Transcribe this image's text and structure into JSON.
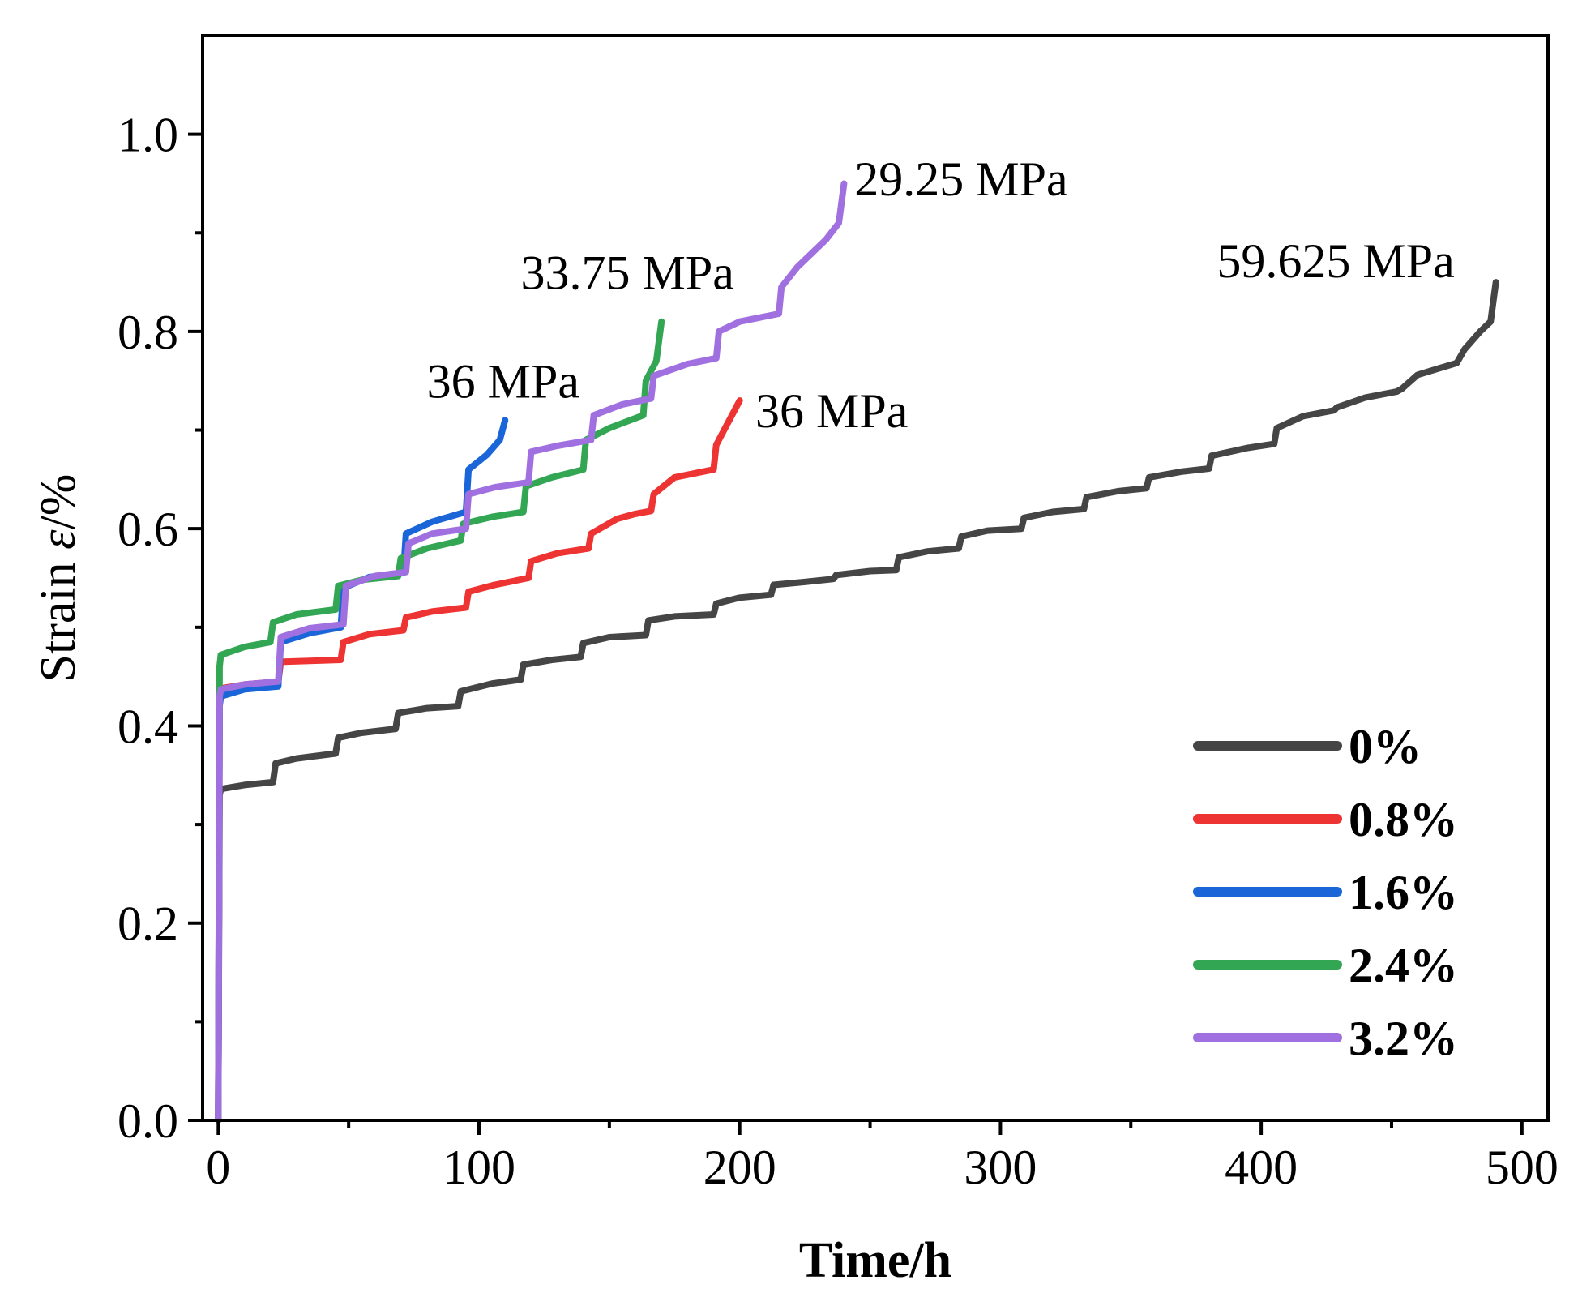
{
  "chart_data": {
    "type": "line",
    "title": "",
    "xlabel": "Time/h",
    "ylabel": "Strain ε/%",
    "ylabel_prefix": "Strain ",
    "ylabel_symbol": "ε",
    "ylabel_suffix": "/%",
    "xlim": [
      -6,
      510
    ],
    "ylim": [
      0,
      1.1
    ],
    "x_ticks": [
      0,
      100,
      200,
      300,
      400,
      500
    ],
    "x_tick_labels": [
      "0",
      "100",
      "200",
      "300",
      "400",
      "500"
    ],
    "y_ticks": [
      0.0,
      0.2,
      0.4,
      0.6,
      0.8,
      1.0
    ],
    "y_tick_labels": [
      "0.0",
      "0.2",
      "0.4",
      "0.6",
      "0.8",
      "1.0"
    ],
    "legend_position": "bottom-right",
    "series": [
      {
        "name": "0%",
        "color": "#454545",
        "points": [
          [
            0,
            0
          ],
          [
            0.5,
            0.33
          ],
          [
            1,
            0.336
          ],
          [
            10,
            0.34
          ],
          [
            21,
            0.343
          ],
          [
            22,
            0.362
          ],
          [
            30,
            0.367
          ],
          [
            45,
            0.372
          ],
          [
            46,
            0.388
          ],
          [
            55,
            0.393
          ],
          [
            68,
            0.397
          ],
          [
            69,
            0.413
          ],
          [
            80,
            0.418
          ],
          [
            92,
            0.42
          ],
          [
            93,
            0.435
          ],
          [
            105,
            0.443
          ],
          [
            116,
            0.447
          ],
          [
            117,
            0.462
          ],
          [
            128,
            0.467
          ],
          [
            139,
            0.47
          ],
          [
            140,
            0.484
          ],
          [
            150,
            0.49
          ],
          [
            164,
            0.492
          ],
          [
            165,
            0.507
          ],
          [
            175,
            0.511
          ],
          [
            190,
            0.513
          ],
          [
            191,
            0.524
          ],
          [
            200,
            0.53
          ],
          [
            212,
            0.533
          ],
          [
            213,
            0.543
          ],
          [
            225,
            0.546
          ],
          [
            236,
            0.549
          ],
          [
            237,
            0.553
          ],
          [
            250,
            0.557
          ],
          [
            260,
            0.558
          ],
          [
            261,
            0.571
          ],
          [
            272,
            0.577
          ],
          [
            284,
            0.58
          ],
          [
            285,
            0.592
          ],
          [
            295,
            0.598
          ],
          [
            308,
            0.6
          ],
          [
            309,
            0.611
          ],
          [
            320,
            0.617
          ],
          [
            332,
            0.62
          ],
          [
            333,
            0.632
          ],
          [
            345,
            0.638
          ],
          [
            356,
            0.641
          ],
          [
            357,
            0.652
          ],
          [
            370,
            0.658
          ],
          [
            380,
            0.661
          ],
          [
            381,
            0.674
          ],
          [
            395,
            0.682
          ],
          [
            405,
            0.686
          ],
          [
            406,
            0.702
          ],
          [
            416,
            0.714
          ],
          [
            428,
            0.72
          ],
          [
            429,
            0.723
          ],
          [
            440,
            0.733
          ],
          [
            452,
            0.739
          ],
          [
            454,
            0.742
          ],
          [
            460,
            0.756
          ],
          [
            475,
            0.768
          ],
          [
            478,
            0.782
          ],
          [
            484,
            0.8
          ],
          [
            488,
            0.81
          ],
          [
            489,
            0.83
          ],
          [
            490,
            0.85
          ]
        ]
      },
      {
        "name": "0.8%",
        "color": "#ee3333",
        "points": [
          [
            0,
            0
          ],
          [
            0.5,
            0.43
          ],
          [
            1,
            0.438
          ],
          [
            10,
            0.442
          ],
          [
            23,
            0.445
          ],
          [
            24,
            0.465
          ],
          [
            35,
            0.466
          ],
          [
            47,
            0.467
          ],
          [
            48,
            0.485
          ],
          [
            58,
            0.493
          ],
          [
            71,
            0.497
          ],
          [
            72,
            0.51
          ],
          [
            82,
            0.516
          ],
          [
            95,
            0.52
          ],
          [
            96,
            0.536
          ],
          [
            106,
            0.543
          ],
          [
            119,
            0.55
          ],
          [
            120,
            0.567
          ],
          [
            130,
            0.575
          ],
          [
            142,
            0.58
          ],
          [
            143,
            0.595
          ],
          [
            153,
            0.61
          ],
          [
            160,
            0.615
          ],
          [
            166,
            0.618
          ],
          [
            167,
            0.635
          ],
          [
            175,
            0.652
          ],
          [
            190,
            0.66
          ],
          [
            191,
            0.685
          ],
          [
            194,
            0.7
          ],
          [
            197,
            0.715
          ],
          [
            200,
            0.73
          ]
        ]
      },
      {
        "name": "1.6%",
        "color": "#1a66d9",
        "points": [
          [
            0,
            0
          ],
          [
            0.5,
            0.42
          ],
          [
            1,
            0.43
          ],
          [
            10,
            0.437
          ],
          [
            23,
            0.44
          ],
          [
            24,
            0.485
          ],
          [
            35,
            0.494
          ],
          [
            47,
            0.5
          ],
          [
            48,
            0.54
          ],
          [
            58,
            0.551
          ],
          [
            71,
            0.555
          ],
          [
            72,
            0.595
          ],
          [
            82,
            0.607
          ],
          [
            95,
            0.617
          ],
          [
            96,
            0.66
          ],
          [
            103,
            0.675
          ],
          [
            108,
            0.69
          ],
          [
            110,
            0.71
          ]
        ]
      },
      {
        "name": "2.4%",
        "color": "#33a654",
        "points": [
          [
            0,
            0
          ],
          [
            0.5,
            0.46
          ],
          [
            1,
            0.472
          ],
          [
            10,
            0.48
          ],
          [
            20,
            0.485
          ],
          [
            21,
            0.505
          ],
          [
            30,
            0.513
          ],
          [
            45,
            0.518
          ],
          [
            46,
            0.542
          ],
          [
            55,
            0.548
          ],
          [
            69,
            0.552
          ],
          [
            70,
            0.57
          ],
          [
            80,
            0.58
          ],
          [
            93,
            0.588
          ],
          [
            94,
            0.605
          ],
          [
            105,
            0.612
          ],
          [
            117,
            0.617
          ],
          [
            118,
            0.643
          ],
          [
            128,
            0.652
          ],
          [
            140,
            0.66
          ],
          [
            141,
            0.69
          ],
          [
            150,
            0.702
          ],
          [
            163,
            0.715
          ],
          [
            164,
            0.75
          ],
          [
            168,
            0.77
          ],
          [
            170,
            0.81
          ]
        ]
      },
      {
        "name": "3.2%",
        "color": "#a070e0",
        "points": [
          [
            0,
            0
          ],
          [
            0.5,
            0.43
          ],
          [
            1,
            0.437
          ],
          [
            10,
            0.442
          ],
          [
            23,
            0.445
          ],
          [
            24,
            0.49
          ],
          [
            35,
            0.499
          ],
          [
            48,
            0.503
          ],
          [
            49,
            0.542
          ],
          [
            60,
            0.552
          ],
          [
            72,
            0.556
          ],
          [
            73,
            0.585
          ],
          [
            82,
            0.595
          ],
          [
            95,
            0.6
          ],
          [
            96,
            0.635
          ],
          [
            106,
            0.642
          ],
          [
            119,
            0.647
          ],
          [
            120,
            0.678
          ],
          [
            130,
            0.684
          ],
          [
            143,
            0.69
          ],
          [
            144,
            0.715
          ],
          [
            155,
            0.726
          ],
          [
            166,
            0.732
          ],
          [
            167,
            0.755
          ],
          [
            180,
            0.767
          ],
          [
            191,
            0.773
          ],
          [
            192,
            0.8
          ],
          [
            200,
            0.81
          ],
          [
            215,
            0.818
          ],
          [
            216,
            0.845
          ],
          [
            222,
            0.865
          ],
          [
            233,
            0.893
          ],
          [
            238,
            0.91
          ],
          [
            240,
            0.95
          ]
        ]
      }
    ],
    "annotations": [
      {
        "text": "59.625 MPa",
        "x": 383,
        "y": 0.855
      },
      {
        "text": "29.25 MPa",
        "x": 244,
        "y": 0.938
      },
      {
        "text": "33.75 MPa",
        "x": 116,
        "y": 0.843
      },
      {
        "text": "36 MPa",
        "x": 80,
        "y": 0.733
      },
      {
        "text": "36 MPa",
        "x": 206,
        "y": 0.703
      }
    ]
  }
}
